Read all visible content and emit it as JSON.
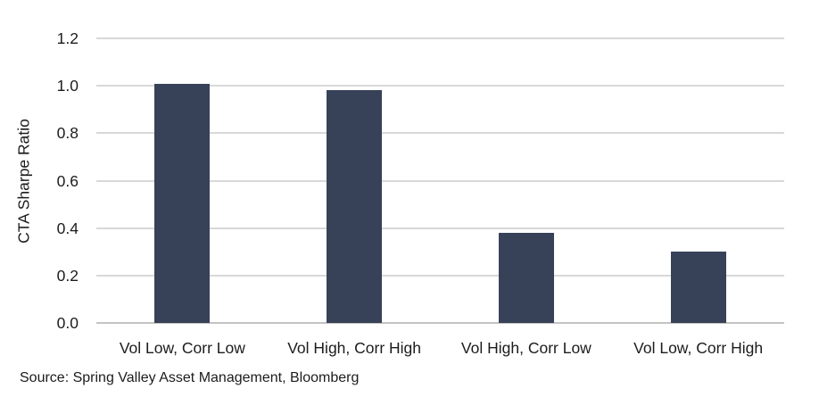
{
  "source": "Source: Spring Valley Asset Management, Bloomberg",
  "chart_data": {
    "type": "bar",
    "categories": [
      "Vol Low, Corr Low",
      "Vol High, Corr High",
      "Vol High, Corr Low",
      "Vol Low, Corr High"
    ],
    "values": [
      1.01,
      0.98,
      0.38,
      0.3
    ],
    "title": "",
    "xlabel": "",
    "ylabel": "CTA Sharpe Ratio",
    "ylim": [
      0,
      1.2
    ],
    "yticks": [
      0,
      0.2,
      0.4,
      0.6,
      0.8,
      1.0,
      1.2
    ],
    "ytick_labels": [
      "0.0",
      "0.2",
      "0.4",
      "0.6",
      "0.8",
      "1.0",
      "1.2"
    ],
    "grid": "horizontal",
    "legend": "none",
    "bar_color": "#374258",
    "gridline_color": "#d8d8d8",
    "axis_line_color": "#c4c4c4",
    "text_color": "#1c1c1c"
  }
}
